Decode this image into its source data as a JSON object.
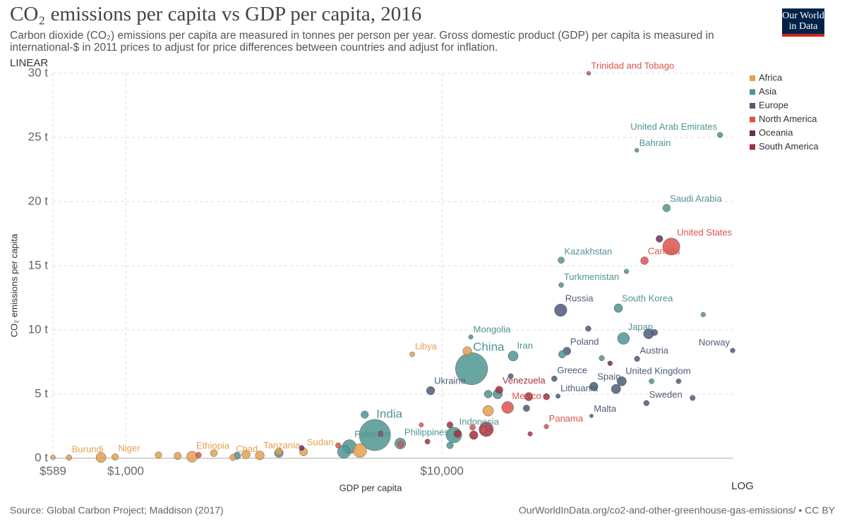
{
  "chart_data": {
    "type": "scatter",
    "title": "CO₂ emissions per capita vs GDP per capita, 2016",
    "subtitle": "Carbon dioxide (CO₂) emissions per capita are measured in tonnes per person per year. Gross domestic product (GDP) per capita is measured in international-$ in 2011 prices to adjust for price differences between countries and adjust for inflation.",
    "logo": "Our World in Data",
    "x_label": "GDP per capita",
    "y_label": "CO₂ emissions per capita",
    "x_scale_label": "LOG",
    "y_scale_label": "LINEAR",
    "source": "Source: Global Carbon Project; Maddison (2017)",
    "url": "OurWorldInData.org/co2-and-other-greenhouse-gas-emissions/ • CC BY",
    "x_log": true,
    "grid": true,
    "legend": "right",
    "xlim": [
      589,
      83000
    ],
    "ylim": [
      0,
      30
    ],
    "xticks": [
      {
        "value": 589,
        "label": "$589"
      },
      {
        "value": 1000,
        "label": "$1,000"
      },
      {
        "value": 10000,
        "label": "$10,000"
      }
    ],
    "yticks": [
      {
        "value": 0,
        "label": "0 t"
      },
      {
        "value": 5,
        "label": "5 t"
      },
      {
        "value": 10,
        "label": "10 t"
      },
      {
        "value": 15,
        "label": "15 t"
      },
      {
        "value": 20,
        "label": "20 t"
      },
      {
        "value": 25,
        "label": "25 t"
      },
      {
        "value": 30,
        "label": "30 t"
      }
    ],
    "series": [
      {
        "name": "Africa",
        "color": "#e5a04f",
        "x": [
          662,
          926,
          1622,
          2183,
          2655,
          3651,
          8055,
          589,
          836,
          1270,
          1460,
          1900,
          2400,
          3050,
          12027,
          14000,
          5500
        ],
        "values": [
          0.05,
          0.1,
          0.12,
          0.06,
          0.22,
          0.5,
          8.1,
          0.07,
          0.06,
          0.25,
          0.18,
          0.4,
          0.3,
          0.5,
          8.35,
          3.7,
          0.6
        ],
        "sizes": [
          11,
          21,
          102,
          15,
          56,
          40,
          6,
          5,
          79,
          20,
          30,
          25,
          48,
          28,
          56,
          96,
          186
        ],
        "labels": [
          "Burundi",
          "Niger",
          "Ethiopia",
          "Chad",
          "Tanzania",
          "Sudan",
          "Libya",
          null,
          null,
          null,
          null,
          null,
          null,
          null,
          null,
          null,
          null
        ]
      },
      {
        "name": "Asia",
        "color": "#4f9592",
        "x": [
          12405,
          6138,
          5100,
          10910,
          7380,
          12340,
          16790,
          23820,
          23820,
          36100,
          37500,
          51300,
          75700,
          41300,
          4900,
          15000,
          24000,
          14000,
          5700,
          32000,
          67000,
          38300,
          3050,
          2250,
          10600,
          46000
        ],
        "values": [
          6.98,
          1.81,
          0.9,
          1.81,
          1.15,
          9.45,
          7.97,
          15.44,
          13.5,
          11.7,
          9.34,
          19.5,
          25.2,
          24.0,
          0.5,
          5.0,
          8.1,
          5.0,
          3.4,
          7.8,
          11.2,
          14.56,
          0.4,
          0.2,
          1.0,
          6.0
        ],
        "sizes": [
          1400,
          1320,
          200,
          261,
          104,
          3,
          80,
          18,
          6,
          51,
          127,
          33,
          9,
          1.5,
          163,
          69,
          31,
          37,
          32,
          8,
          4,
          4,
          53,
          28,
          21,
          7
        ],
        "labels": [
          "China",
          "India",
          "Pakistan",
          "Indonesia",
          "Philippines",
          "Mongolia",
          "Iran",
          "Kazakhstan",
          "Turkmenistan",
          "South Korea",
          "Japan",
          "Saudi Arabia",
          "United Arab Emirates",
          "Bahrain",
          null,
          null,
          null,
          null,
          null,
          null,
          null,
          null,
          null,
          null,
          null,
          null
        ]
      },
      {
        "name": "Europe",
        "color": "#4e5b78",
        "x": [
          23730,
          24830,
          9210,
          22660,
          30200,
          37000,
          41400,
          83000,
          44300,
          23280,
          29700,
          45000,
          35500,
          47000,
          29000,
          18500,
          16500,
          56000,
          62000
        ],
        "values": [
          11.54,
          8.35,
          5.27,
          6.2,
          5.6,
          6.0,
          7.75,
          8.4,
          4.3,
          4.84,
          3.3,
          9.7,
          5.4,
          9.8,
          10.1,
          3.9,
          6.4,
          6.0,
          4.7
        ],
        "sizes": [
          144,
          38,
          45,
          11,
          46,
          66,
          9,
          5,
          10,
          3,
          0.5,
          82,
          65,
          17,
          10,
          20,
          7,
          6,
          8
        ],
        "labels": [
          "Russia",
          "Poland",
          "Ukraine",
          "Greece",
          "Spain",
          "United Kingdom",
          "Austria",
          "Norway",
          "Sweden",
          "Lithuania",
          "Malta",
          null,
          null,
          null,
          null,
          null,
          null,
          null,
          null
        ]
      },
      {
        "name": "North America",
        "color": "#d9534f",
        "x": [
          53100,
          43700,
          16130,
          21380,
          29100,
          12500,
          7400,
          4700,
          13500,
          1700,
          8600
        ],
        "values": [
          16.5,
          15.4,
          3.96,
          2.47,
          30.0,
          2.4,
          1.1,
          1.0,
          2.2,
          0.25,
          2.6
        ],
        "sizes": [
          323,
          36,
          127,
          4,
          1.4,
          11,
          17,
          9,
          11,
          11,
          3
        ],
        "labels": [
          "United States",
          "Canada",
          "Mexico",
          "Panama",
          "Trinidad and Tobago",
          null,
          null,
          null,
          null,
          null,
          null
        ]
      },
      {
        "name": "Oceania",
        "color": "#6d2d5d",
        "x": [
          48700,
          34000,
          3600
        ],
        "values": [
          17.1,
          7.4,
          0.8
        ],
        "sizes": [
          24,
          4.7,
          8
        ],
        "labels": [
          null,
          null,
          null
        ]
      },
      {
        "name": "South America",
        "color": "#a3303f",
        "x": [
          15170,
          13800,
          18800,
          21400,
          12600,
          11200,
          10600,
          6400,
          19000,
          9000
        ],
        "values": [
          5.33,
          2.25,
          4.8,
          4.8,
          1.8,
          1.9,
          2.6,
          1.9,
          1.9,
          1.3
        ],
        "sizes": [
          31,
          207,
          44,
          18,
          49,
          32,
          16,
          11,
          3.4,
          7
        ],
        "labels": [
          "Venezuela",
          null,
          null,
          null,
          null,
          null,
          null,
          null,
          null,
          null
        ]
      }
    ]
  }
}
